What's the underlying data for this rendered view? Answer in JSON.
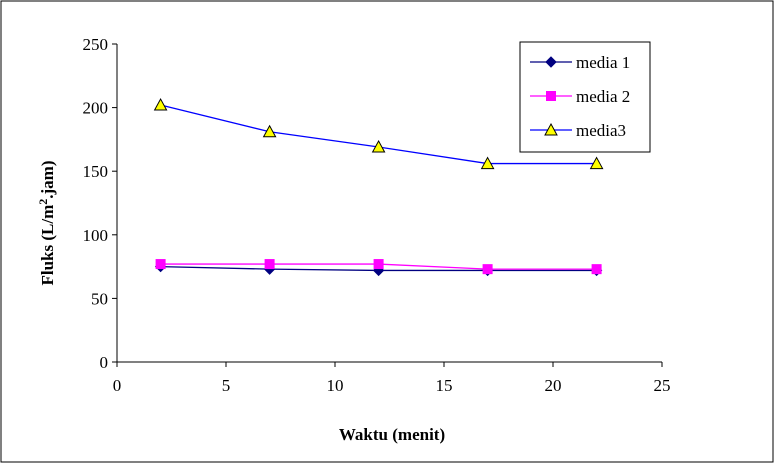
{
  "chart_data": {
    "type": "line",
    "xlabel": "Waktu (menit)",
    "ylabel": {
      "prefix": "Fluks (L/m",
      "sup": "2",
      "suffix": ".jam)"
    },
    "xlim": [
      0,
      25
    ],
    "ylim": [
      0,
      250
    ],
    "xticks": [
      0,
      5,
      10,
      15,
      20,
      25
    ],
    "yticks": [
      0,
      50,
      100,
      150,
      200,
      250
    ],
    "grid": false,
    "legend_position": "top-right",
    "x": [
      2,
      7,
      12,
      17,
      22
    ],
    "series": [
      {
        "name": "media 1",
        "values": [
          75,
          73,
          72,
          72,
          72
        ],
        "color": "#000080",
        "marker": "diamond"
      },
      {
        "name": "media 2",
        "values": [
          77,
          77,
          77,
          73,
          73
        ],
        "color": "#ff00ff",
        "marker": "square"
      },
      {
        "name": "media3",
        "values": [
          202,
          181,
          169,
          156,
          156
        ],
        "color": "#0000ff",
        "marker": "triangle",
        "marker_fill": "#ffff00"
      }
    ]
  }
}
